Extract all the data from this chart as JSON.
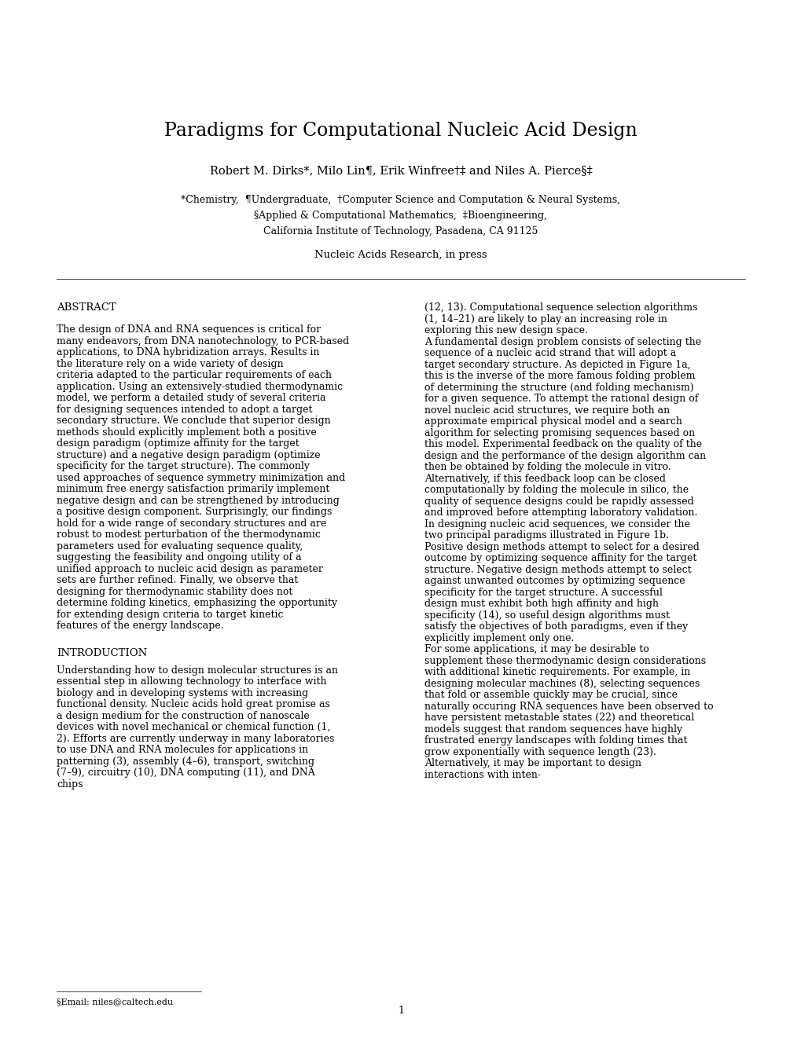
{
  "bg_color": "#ffffff",
  "title": "Paradigms for Computational Nucleic Acid Design",
  "authors": "Robert M. Dirks*, Milo Lin¶, Erik Winfree†‡ and Niles A. Pierce§‡",
  "affiliations_line1": "*Chemistry,  ¶Undergraduate,  †Computer Science and Computation & Neural Systems,",
  "affiliations_line2": "§Applied & Computational Mathematics,  ‡Bioengineering,",
  "affiliations_line3": "California Institute of Technology, Pasadena, CA 91125",
  "journal": "Nucleic Acids Research, in press",
  "abstract_title": "ABSTRACT",
  "abstract_text": "The design of DNA and RNA sequences is critical for many endeavors, from DNA nanotechnology, to PCR-based applications, to DNA hybridization arrays.  Results in the literature rely on a wide variety of design criteria adapted to the particular requirements of each application.  Using an extensively-studied thermodynamic model, we perform a detailed study of several criteria for designing sequences intended to adopt a target secondary structure.  We conclude that superior design methods should explicitly implement both a positive design paradigm (optimize affinity for the target structure) and a negative design paradigm (optimize specificity for the target structure).  The commonly used approaches of sequence symmetry minimization and minimum free energy satisfaction primarily implement negative design and can be strengthened by introducing a positive design component.  Surprisingly, our findings hold for a wide range of secondary structures and are robust to modest perturbation of the thermodynamic parameters used for evaluating sequence quality, suggesting the feasibility and ongoing utility of a unified approach to nucleic acid design as parameter sets are further refined.  Finally, we observe that designing for thermodynamic stability does not determine folding kinetics, emphasizing the opportunity for extending design criteria to target kinetic features of the energy landscape.",
  "intro_title": "INTRODUCTION",
  "intro_text": "Understanding how to design molecular structures is an essential step in allowing technology to interface with biology and in developing systems with increasing functional density.  Nucleic acids hold great promise as a design medium for the construction of nanoscale devices with novel mechanical or chemical function (1, 2).  Efforts are currently underway in many laboratories to use DNA and RNA molecules for applications in patterning (3), assembly (4–6), transport, switching (7–9), circuitry (10), DNA computing (11), and DNA chips",
  "right_col_text1": "(12, 13).  Computational sequence selection algorithms (1, 14–21) are likely to play an increasing role in exploring this new design space.",
  "right_col_para2_indent": "    A fundamental design problem consists of selecting the sequence of a nucleic acid strand that will adopt a target secondary structure.  As depicted in Figure 1a, this is the inverse of the more famous folding problem of determining the structure (and folding mechanism) for a given sequence.  To attempt the rational design of novel nucleic acid structures, we require both an approximate empirical physical model and a search algorithm for selecting promising sequences based on this model.  Experimental feedback on the quality of the design and the performance of the design algorithm can then be obtained by folding the molecule in vitro.  Alternatively, if this feedback loop can be closed computationally by folding the molecule in silico, the quality of sequence designs could be rapidly assessed and improved before attempting laboratory validation.",
  "right_col_para3_indent": "    In designing nucleic acid sequences, we consider the two principal paradigms illustrated in Figure 1b.  Positive design methods attempt to select for a desired outcome by optimizing sequence affinity for the target structure.  Negative design methods attempt to select against unwanted outcomes by optimizing sequence specificity for the target structure.  A successful design must exhibit both high affinity and high specificity (14), so useful design algorithms must satisfy the objectives of both paradigms, even if they explicitly implement only one.",
  "right_col_para4_indent": "    For some applications, it may be desirable to supplement these thermodynamic design considerations with additional kinetic requirements.  For example, in designing molecular machines (8), selecting sequences that fold or assemble quickly may be crucial, since naturally occuring RNA sequences have been observed to have persistent metastable states (22) and theoretical models suggest that random sequences have highly frustrated energy landscapes with folding times that grow exponentially with sequence length (23).  Alternatively, it may be important to design interactions with inten-",
  "footnote": "§Email: niles@caltech.edu",
  "page_num": "1"
}
